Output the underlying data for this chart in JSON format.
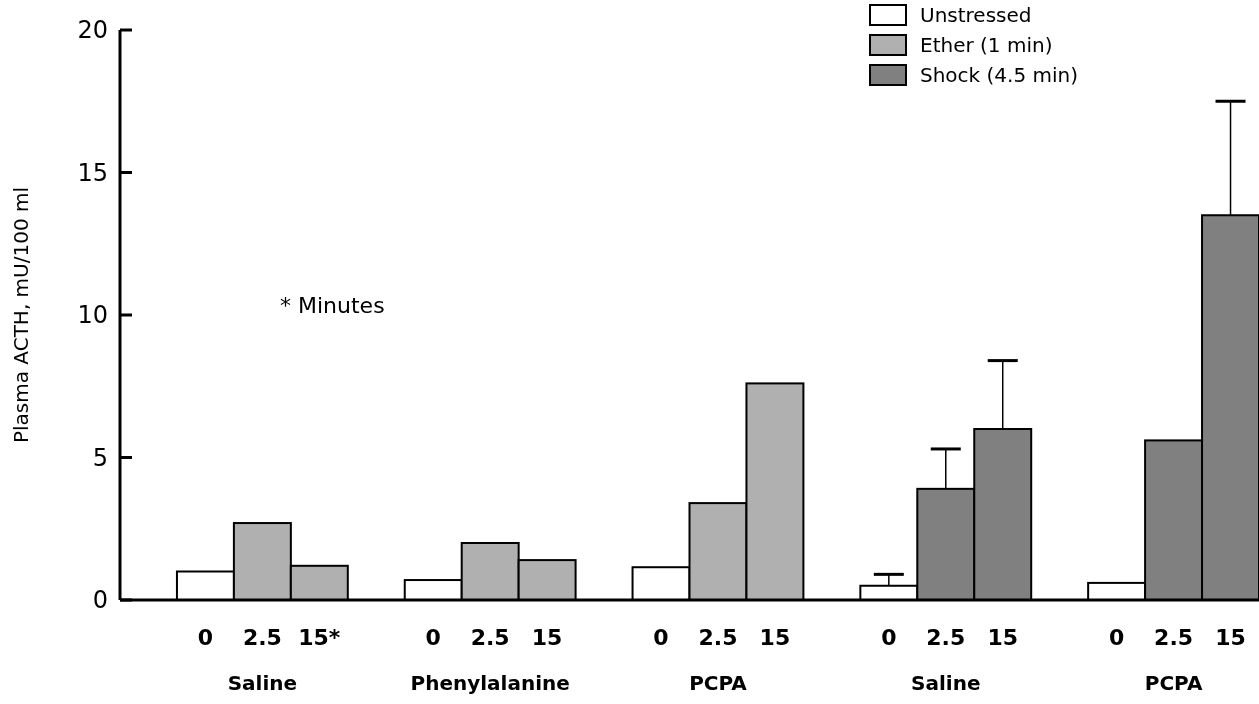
{
  "chart_data": {
    "type": "bar",
    "ylabel": "Plasma ACTH, mU/100 ml",
    "ylim": [
      0,
      20
    ],
    "yticks": [
      0,
      5,
      10,
      15,
      20
    ],
    "grid": false,
    "legend": "top right",
    "categories": [
      null,
      "0",
      "2.5",
      "15*",
      null,
      "0",
      "2.5",
      "15",
      null,
      "0",
      "2.5",
      "15",
      null,
      "0",
      "2.5",
      "15",
      null,
      "0",
      "2.5",
      "15"
    ],
    "series": [
      {
        "name": "Unstressed",
        "color": "#ffffff",
        "values": [
          null,
          1.0,
          null,
          null,
          null,
          0.7,
          null,
          null,
          null,
          1.15,
          null,
          null,
          null,
          0.5,
          null,
          null,
          null,
          0.6,
          null,
          null
        ],
        "errors": [
          null,
          null,
          null,
          null,
          null,
          null,
          null,
          null,
          null,
          null,
          null,
          null,
          null,
          [
            0.5,
            0.9
          ],
          null,
          null,
          null,
          null,
          null,
          null
        ]
      },
      {
        "name": "Ether (1 min)",
        "color": "#b0b0b0",
        "values": [
          null,
          null,
          2.7,
          1.2,
          null,
          null,
          2.0,
          1.4,
          null,
          null,
          3.4,
          7.6,
          null,
          null,
          null,
          null,
          null,
          null,
          null,
          null
        ]
      },
      {
        "name": "Shock (4.5 min)",
        "color": "#808080",
        "values": [
          null,
          null,
          null,
          null,
          null,
          null,
          null,
          null,
          null,
          null,
          null,
          null,
          null,
          null,
          3.9,
          6.0,
          null,
          null,
          5.6,
          13.5
        ],
        "errors": [
          null,
          null,
          null,
          null,
          null,
          null,
          null,
          null,
          null,
          null,
          null,
          null,
          null,
          null,
          [
            3.9,
            5.3
          ],
          [
            6.0,
            8.4
          ],
          null,
          null,
          null,
          [
            13.5,
            17.5
          ]
        ]
      }
    ],
    "annotations": [
      "* Minutes",
      "Saline",
      "Phenylalanine",
      "PCPA",
      "Saline",
      "PCPA"
    ]
  }
}
